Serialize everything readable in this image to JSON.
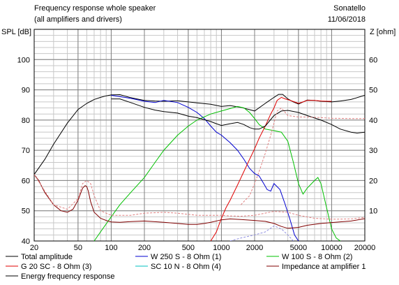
{
  "header": {
    "title": "Frequency response whole speaker",
    "subtitle": "(all amplifiers and drivers)",
    "brand": "Sonatello",
    "date": "11/06/2018"
  },
  "chart_data": {
    "type": "line",
    "xscale": "log",
    "xlim": [
      20,
      20000
    ],
    "ylim_left": [
      40,
      110
    ],
    "ylim_right": [
      0,
      70
    ],
    "ylabel_left": "SPL [dB]",
    "ylabel_right": "Z [ohm]",
    "x_ticks": [
      "20",
      "50",
      "100",
      "200",
      "500",
      "1000",
      "2000",
      "5000",
      "10000",
      "20000"
    ],
    "x_tick_values": [
      20,
      50,
      100,
      200,
      500,
      1000,
      2000,
      5000,
      10000,
      20000
    ],
    "y_ticks_left": [
      "40",
      "50",
      "60",
      "70",
      "80",
      "90",
      "100"
    ],
    "y_tick_values_left": [
      40,
      50,
      60,
      70,
      80,
      90,
      100
    ],
    "y_ticks_right": [
      "10",
      "20",
      "30",
      "40",
      "50",
      "60"
    ],
    "y_tick_values_right": [
      10,
      20,
      30,
      40,
      50,
      60
    ],
    "grid": true,
    "legend_position": "bottom",
    "series": [
      {
        "name": "Total amplitude",
        "color": "#000000",
        "axis": "left",
        "x": [
          20,
          25,
          30,
          40,
          50,
          60,
          70,
          80,
          90,
          100,
          120,
          150,
          180,
          200,
          250,
          300,
          400,
          500,
          600,
          800,
          1000,
          1200,
          1500,
          2000,
          2500,
          3000,
          3300,
          3600,
          4000,
          4500,
          5000,
          6000,
          7000,
          8000,
          10000,
          12000,
          15000,
          20000
        ],
        "y": [
          62,
          67,
          72,
          79,
          83.5,
          85.5,
          86.8,
          87.5,
          88,
          88.3,
          88.4,
          87.4,
          86.8,
          86.5,
          86.3,
          86.2,
          86.4,
          86,
          85.7,
          85.2,
          84.5,
          84.8,
          84.2,
          83,
          85.5,
          87.5,
          88.5,
          88.5,
          87,
          86,
          85.3,
          86.6,
          86.5,
          86.2,
          86,
          86.3,
          86.8,
          88.2
        ]
      },
      {
        "name": "W 250 S - 8 Ohm  (1)",
        "color": "#0000d0",
        "axis": "left",
        "x": [
          100,
          150,
          200,
          250,
          300,
          400,
          500,
          600,
          700,
          800,
          900,
          1000,
          1200,
          1400,
          1600,
          1800,
          2000,
          2200,
          2400,
          2600,
          2800,
          3000,
          3400,
          3800,
          4200,
          4600,
          5000
        ],
        "y": [
          88.2,
          87.2,
          86.2,
          85.8,
          86.5,
          85.8,
          84.2,
          82.5,
          80.5,
          78,
          76,
          75,
          72.5,
          70,
          67,
          64,
          62.3,
          61.5,
          59.2,
          57,
          56.5,
          59,
          57,
          52,
          47,
          42,
          40
        ]
      },
      {
        "name": "W 100 S - 8 Ohm (2)",
        "color": "#00c000",
        "axis": "left",
        "x": [
          70,
          80,
          100,
          120,
          150,
          200,
          250,
          300,
          400,
          500,
          600,
          800,
          1000,
          1200,
          1400,
          1600,
          1800,
          2000,
          2200,
          2500,
          3000,
          3500,
          4000,
          4500,
          5000,
          5500,
          6000,
          7000,
          7500,
          8000,
          9000,
          10000,
          11000,
          12000
        ],
        "y": [
          40,
          43,
          48,
          52,
          56,
          61,
          66,
          70,
          75,
          78,
          80,
          82,
          83,
          83.8,
          84.5,
          84,
          82.5,
          80.5,
          78.5,
          77,
          76.5,
          76,
          73,
          66,
          59,
          55.5,
          57.5,
          60,
          61,
          59,
          51,
          44,
          41,
          40
        ]
      },
      {
        "name": "G 20 SC - 8 Ohm (3)",
        "color": "#e00000",
        "axis": "left",
        "x": [
          800,
          900,
          1000,
          1100,
          1200,
          1400,
          1600,
          1800,
          2000,
          2200,
          2500,
          2800,
          3000,
          3200,
          3500,
          3800,
          4200,
          4600,
          5000,
          5500,
          6000,
          7000,
          8000,
          9000,
          10000
        ],
        "y": [
          40,
          43,
          47.5,
          51,
          53.5,
          58.5,
          63,
          67,
          70.5,
          74,
          78,
          82,
          84,
          86.5,
          87.5,
          87,
          86.5,
          86,
          85.5,
          86,
          86.5,
          86.5,
          86.3,
          86.2,
          86.2
        ]
      },
      {
        "name": "SC 10 N - 8 Ohm (4)",
        "color": "#00c0c0",
        "axis": "left",
        "x": [],
        "y": []
      },
      {
        "name": "Impedance at amplifier 1",
        "color": "#800000",
        "axis": "right",
        "x": [
          20,
          22,
          25,
          30,
          35,
          40,
          45,
          50,
          55,
          58,
          60,
          62,
          65,
          70,
          80,
          90,
          100,
          120,
          150,
          200,
          300,
          400,
          500,
          600,
          700,
          800,
          1000,
          1200,
          1500,
          2000,
          2500,
          3000,
          3500,
          4000,
          5000,
          6000,
          8000,
          10000,
          15000,
          20000
        ],
        "y": [
          22,
          20,
          16,
          12,
          10,
          9.5,
          10.5,
          13.5,
          17.5,
          18.3,
          18,
          16.5,
          13,
          9.5,
          7.5,
          6.8,
          6.3,
          6.2,
          6.4,
          6.6,
          6.2,
          5.8,
          5.5,
          5.5,
          5.8,
          6.2,
          7,
          7.3,
          7.1,
          6.8,
          6.5,
          5.8,
          4.8,
          4.2,
          4.5,
          5.2,
          5.8,
          6.1,
          6.6,
          7.4
        ]
      },
      {
        "name": "Energy frequency response",
        "color": "#000000",
        "axis": "left",
        "x": [
          100,
          120,
          150,
          200,
          250,
          300,
          400,
          500,
          600,
          700,
          800,
          900,
          1000,
          1200,
          1400,
          1600,
          1800,
          2000,
          2200,
          2500,
          3000,
          3500,
          4000,
          5000,
          6000,
          8000,
          10000,
          12000,
          15000,
          17000,
          20000
        ],
        "y": [
          87,
          87,
          85.8,
          84.2,
          83.3,
          82.8,
          82.3,
          81.3,
          80.8,
          80.1,
          79.5,
          78.8,
          78.2,
          78.8,
          79.2,
          78.5,
          77.5,
          77,
          77,
          78,
          81.5,
          83,
          83.2,
          82.5,
          81.5,
          80,
          78.5,
          77,
          76,
          75.7,
          76
        ]
      },
      {
        "name": "",
        "color": "#e08080",
        "axis": "left",
        "style": "dashed",
        "x": [
          1500,
          1800,
          2000,
          2200,
          2500,
          2800,
          3000,
          3200,
          3500,
          4000,
          5000,
          6000,
          8000,
          10000,
          15000,
          20000
        ],
        "y": [
          52,
          55,
          59,
          63,
          69,
          75,
          79,
          83,
          84,
          81.5,
          81,
          81,
          80.8,
          80.6,
          80.5,
          80.5
        ]
      },
      {
        "name": "",
        "color": "#e08080",
        "axis": "right",
        "style": "dashed",
        "x": [
          20,
          30,
          40,
          50,
          55,
          60,
          65,
          70,
          80,
          100,
          150,
          200,
          300,
          400,
          600,
          800,
          1000,
          1200,
          1500,
          2000,
          3000,
          4000,
          5000,
          7000,
          10000,
          15000,
          20000
        ],
        "y": [
          22,
          12,
          10.5,
          14,
          19,
          20,
          19,
          15,
          10,
          8.5,
          8.5,
          9.2,
          9.5,
          9.2,
          8.5,
          8.5,
          8.5,
          8.3,
          8.2,
          8.5,
          9.8,
          9.5,
          8.5,
          7.5,
          7.2,
          7.3,
          7.8
        ]
      },
      {
        "name": "",
        "color": "#9090e0",
        "axis": "left",
        "style": "dashed",
        "x": [
          1200,
          1500,
          2000,
          2500,
          3000,
          3500,
          4000,
          4500
        ],
        "y": [
          40,
          41,
          42,
          43,
          45,
          44,
          42,
          40
        ]
      }
    ]
  }
}
